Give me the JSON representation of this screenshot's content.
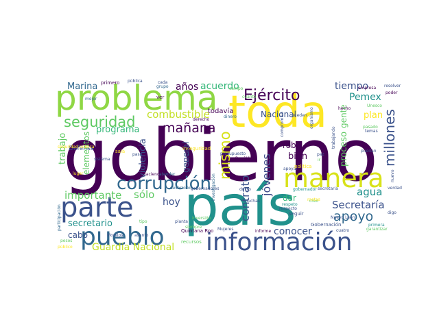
{
  "wordcloud": {
    "palette": [
      "#440154",
      "#3b528b",
      "#21918c",
      "#5ec962",
      "#fde725"
    ],
    "words": [
      {
        "text": "gobierno",
        "color": "#440154"
      },
      {
        "text": "país",
        "color": "#21918c"
      },
      {
        "text": "toda",
        "color": "#fde725"
      },
      {
        "text": "problema",
        "color": "#8fd744"
      },
      {
        "text": "información",
        "color": "#3b528b"
      },
      {
        "text": "parte",
        "color": "#3b528b"
      },
      {
        "text": "pueblo",
        "color": "#31688e"
      },
      {
        "text": "manera",
        "color": "#d8e219"
      },
      {
        "text": "corrupción",
        "color": "#31688e"
      },
      {
        "text": "Ejército",
        "color": "#440154"
      },
      {
        "text": "seguridad",
        "color": "#5ec962"
      },
      {
        "text": "millones",
        "color": "#3b528b"
      },
      {
        "text": "mañana",
        "color": "#440154"
      },
      {
        "text": "importante",
        "color": "#5ec962"
      },
      {
        "text": "sólo",
        "color": "#5ec962"
      },
      {
        "text": "apoyo",
        "color": "#31688e"
      },
      {
        "text": "Secretaría",
        "color": "#3b528b"
      },
      {
        "text": "agua",
        "color": "#21918c"
      },
      {
        "text": "combustible",
        "color": "#c2df23"
      },
      {
        "text": "programa",
        "color": "#35b779"
      },
      {
        "text": "mismo",
        "color": "#d8e219"
      },
      {
        "text": "jóvenes",
        "color": "#3e4a89"
      },
      {
        "text": "Guardia Nacional",
        "color": "#c2df23"
      },
      {
        "text": "secretario",
        "color": "#21918c"
      },
      {
        "text": "contrato",
        "color": "#3b528b"
      },
      {
        "text": "conocer",
        "color": "#3b528b"
      },
      {
        "text": "hoy",
        "color": "#3b528b"
      },
      {
        "text": "años",
        "color": "#440154"
      },
      {
        "text": "acuerdo",
        "color": "#35b779"
      },
      {
        "text": "tiempo",
        "color": "#3b528b"
      },
      {
        "text": "Pemex",
        "color": "#21918c"
      },
      {
        "text": "plan",
        "color": "#fde725"
      },
      {
        "text": "gente",
        "color": "#5ec962"
      },
      {
        "text": "Nacional",
        "color": "#3b528b"
      },
      {
        "text": "Marina",
        "color": "#31688e"
      },
      {
        "text": "cabo",
        "color": "#3b528b"
      },
      {
        "text": "trabajo",
        "color": "#5ec962"
      },
      {
        "text": "violencia",
        "color": "#3b528b"
      },
      {
        "text": "elementos",
        "color": "#5ec962"
      },
      {
        "text": "general",
        "color": "#3b528b"
      },
      {
        "text": "robo",
        "color": "#440154"
      },
      {
        "text": "bien",
        "color": "#440154"
      },
      {
        "text": "dar",
        "color": "#35b779"
      },
      {
        "text": "proceso",
        "color": "#5ec962"
      },
      {
        "text": "Defensa",
        "color": "#3b528b"
      },
      {
        "text": "todavía",
        "color": "#440154"
      },
      {
        "text": "primero",
        "color": "#440154"
      },
      {
        "text": "pública",
        "color": "#3b528b"
      },
      {
        "text": "cada",
        "color": "#3b528b"
      },
      {
        "text": "grupo",
        "color": "#31688e"
      },
      {
        "text": "ver",
        "color": "#440154"
      },
      {
        "text": "mejor",
        "color": "#31688e"
      },
      {
        "text": "campo",
        "color": "#5ec962"
      },
      {
        "text": "derecho",
        "color": "#440154"
      },
      {
        "text": "dinero",
        "color": "#31688e"
      },
      {
        "text": "cuánto",
        "color": "#5ec962"
      },
      {
        "text": "inseguridad",
        "color": "#fde725"
      },
      {
        "text": "inversión",
        "color": "#5ec962"
      },
      {
        "text": "Quintana Roo",
        "color": "#440154"
      },
      {
        "text": "Morelos",
        "color": "#3b528b"
      },
      {
        "text": "asunto",
        "color": "#3b528b"
      },
      {
        "text": "planta",
        "color": "#3b528b"
      },
      {
        "text": "tipo",
        "color": "#5ec962"
      },
      {
        "text": "siempre",
        "color": "#5ec962"
      },
      {
        "text": "Mujeres",
        "color": "#3b528b"
      },
      {
        "text": "recursos",
        "color": "#5ec962"
      },
      {
        "text": "informe",
        "color": "#440154"
      },
      {
        "text": "cuatro",
        "color": "#3b528b"
      },
      {
        "text": "Gobernación",
        "color": "#3b528b"
      },
      {
        "text": "primera",
        "color": "#21918c"
      },
      {
        "text": "garantizar",
        "color": "#5ec962"
      },
      {
        "text": "Nuevo León",
        "color": "#3b528b"
      },
      {
        "text": "digo",
        "color": "#3b528b"
      },
      {
        "text": "secretaria",
        "color": "#3b528b"
      },
      {
        "text": "gobernador",
        "color": "#21918c"
      },
      {
        "text": "respeto",
        "color": "#21918c"
      },
      {
        "text": "respecto",
        "color": "#3b528b"
      },
      {
        "text": "seguir",
        "color": "#3b528b"
      },
      {
        "text": "apoyar",
        "color": "#3b528b"
      },
      {
        "text": "política",
        "color": "#fde725"
      },
      {
        "text": "República",
        "color": "#440154"
      },
      {
        "text": "haciendo",
        "color": "#440154"
      },
      {
        "text": "atender",
        "color": "#31688e"
      },
      {
        "text": "desarrollo",
        "color": "#31688e"
      },
      {
        "text": "gobernadores",
        "color": "#3b528b"
      },
      {
        "text": "ducto",
        "color": "#3b528b"
      },
      {
        "text": "pueden",
        "color": "#3b528b"
      },
      {
        "text": "compromiso",
        "color": "#3b528b"
      },
      {
        "text": "organismo",
        "color": "#3b528b"
      },
      {
        "text": "hecho",
        "color": "#440154"
      },
      {
        "text": "sistema",
        "color": "#3b528b"
      },
      {
        "text": "paso",
        "color": "#3b528b"
      },
      {
        "text": "decisión",
        "color": "#3b528b"
      },
      {
        "text": "presupuesto",
        "color": "#3b528b"
      },
      {
        "text": "resolver",
        "color": "#3b528b"
      },
      {
        "text": "poder",
        "color": "#440154"
      },
      {
        "text": "pasado",
        "color": "#5ec962"
      },
      {
        "text": "temas",
        "color": "#3b528b"
      },
      {
        "text": "empresa",
        "color": "#440154"
      },
      {
        "text": "verdad",
        "color": "#3b528b"
      },
      {
        "text": "nuevo",
        "color": "#3b528b"
      },
      {
        "text": "trabajando",
        "color": "#3b528b"
      },
      {
        "text": "paz",
        "color": "#3b528b"
      },
      {
        "text": "ir",
        "color": "#5ec962"
      },
      {
        "text": "creo",
        "color": "#5ec962"
      },
      {
        "text": "metas",
        "color": "#fde725"
      },
      {
        "text": "pesos",
        "color": "#5ec962"
      },
      {
        "text": "público",
        "color": "#fde725"
      },
      {
        "text": "participación",
        "color": "#31688e"
      },
      {
        "text": "seguridad pública",
        "color": "#fde725"
      },
      {
        "text": "lugar",
        "color": "#fde725"
      },
      {
        "text": "sala",
        "color": "#fde725"
      },
      {
        "text": "investigación",
        "color": "#31688e"
      },
      {
        "text": "Unesco",
        "color": "#5ec962"
      },
      {
        "text": "puedan",
        "color": "#3b528b"
      },
      {
        "text": "Muchas",
        "color": "#3b528b"
      }
    ]
  }
}
